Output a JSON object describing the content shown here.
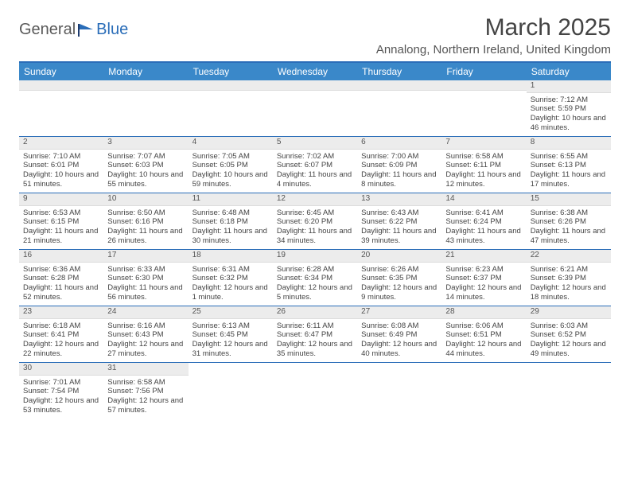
{
  "logo": {
    "word1": "General",
    "word2": "Blue"
  },
  "title": "March 2025",
  "location": "Annalong, Northern Ireland, United Kingdom",
  "colors": {
    "accent": "#2a6db8",
    "header_bg": "#3a88c9",
    "daynum_bg": "#ececec",
    "text": "#444444"
  },
  "day_names": [
    "Sunday",
    "Monday",
    "Tuesday",
    "Wednesday",
    "Thursday",
    "Friday",
    "Saturday"
  ],
  "weeks": [
    [
      null,
      null,
      null,
      null,
      null,
      null,
      {
        "n": "1",
        "sr": "Sunrise: 7:12 AM",
        "ss": "Sunset: 5:59 PM",
        "dl": "Daylight: 10 hours and 46 minutes."
      }
    ],
    [
      {
        "n": "2",
        "sr": "Sunrise: 7:10 AM",
        "ss": "Sunset: 6:01 PM",
        "dl": "Daylight: 10 hours and 51 minutes."
      },
      {
        "n": "3",
        "sr": "Sunrise: 7:07 AM",
        "ss": "Sunset: 6:03 PM",
        "dl": "Daylight: 10 hours and 55 minutes."
      },
      {
        "n": "4",
        "sr": "Sunrise: 7:05 AM",
        "ss": "Sunset: 6:05 PM",
        "dl": "Daylight: 10 hours and 59 minutes."
      },
      {
        "n": "5",
        "sr": "Sunrise: 7:02 AM",
        "ss": "Sunset: 6:07 PM",
        "dl": "Daylight: 11 hours and 4 minutes."
      },
      {
        "n": "6",
        "sr": "Sunrise: 7:00 AM",
        "ss": "Sunset: 6:09 PM",
        "dl": "Daylight: 11 hours and 8 minutes."
      },
      {
        "n": "7",
        "sr": "Sunrise: 6:58 AM",
        "ss": "Sunset: 6:11 PM",
        "dl": "Daylight: 11 hours and 12 minutes."
      },
      {
        "n": "8",
        "sr": "Sunrise: 6:55 AM",
        "ss": "Sunset: 6:13 PM",
        "dl": "Daylight: 11 hours and 17 minutes."
      }
    ],
    [
      {
        "n": "9",
        "sr": "Sunrise: 6:53 AM",
        "ss": "Sunset: 6:15 PM",
        "dl": "Daylight: 11 hours and 21 minutes."
      },
      {
        "n": "10",
        "sr": "Sunrise: 6:50 AM",
        "ss": "Sunset: 6:16 PM",
        "dl": "Daylight: 11 hours and 26 minutes."
      },
      {
        "n": "11",
        "sr": "Sunrise: 6:48 AM",
        "ss": "Sunset: 6:18 PM",
        "dl": "Daylight: 11 hours and 30 minutes."
      },
      {
        "n": "12",
        "sr": "Sunrise: 6:45 AM",
        "ss": "Sunset: 6:20 PM",
        "dl": "Daylight: 11 hours and 34 minutes."
      },
      {
        "n": "13",
        "sr": "Sunrise: 6:43 AM",
        "ss": "Sunset: 6:22 PM",
        "dl": "Daylight: 11 hours and 39 minutes."
      },
      {
        "n": "14",
        "sr": "Sunrise: 6:41 AM",
        "ss": "Sunset: 6:24 PM",
        "dl": "Daylight: 11 hours and 43 minutes."
      },
      {
        "n": "15",
        "sr": "Sunrise: 6:38 AM",
        "ss": "Sunset: 6:26 PM",
        "dl": "Daylight: 11 hours and 47 minutes."
      }
    ],
    [
      {
        "n": "16",
        "sr": "Sunrise: 6:36 AM",
        "ss": "Sunset: 6:28 PM",
        "dl": "Daylight: 11 hours and 52 minutes."
      },
      {
        "n": "17",
        "sr": "Sunrise: 6:33 AM",
        "ss": "Sunset: 6:30 PM",
        "dl": "Daylight: 11 hours and 56 minutes."
      },
      {
        "n": "18",
        "sr": "Sunrise: 6:31 AM",
        "ss": "Sunset: 6:32 PM",
        "dl": "Daylight: 12 hours and 1 minute."
      },
      {
        "n": "19",
        "sr": "Sunrise: 6:28 AM",
        "ss": "Sunset: 6:34 PM",
        "dl": "Daylight: 12 hours and 5 minutes."
      },
      {
        "n": "20",
        "sr": "Sunrise: 6:26 AM",
        "ss": "Sunset: 6:35 PM",
        "dl": "Daylight: 12 hours and 9 minutes."
      },
      {
        "n": "21",
        "sr": "Sunrise: 6:23 AM",
        "ss": "Sunset: 6:37 PM",
        "dl": "Daylight: 12 hours and 14 minutes."
      },
      {
        "n": "22",
        "sr": "Sunrise: 6:21 AM",
        "ss": "Sunset: 6:39 PM",
        "dl": "Daylight: 12 hours and 18 minutes."
      }
    ],
    [
      {
        "n": "23",
        "sr": "Sunrise: 6:18 AM",
        "ss": "Sunset: 6:41 PM",
        "dl": "Daylight: 12 hours and 22 minutes."
      },
      {
        "n": "24",
        "sr": "Sunrise: 6:16 AM",
        "ss": "Sunset: 6:43 PM",
        "dl": "Daylight: 12 hours and 27 minutes."
      },
      {
        "n": "25",
        "sr": "Sunrise: 6:13 AM",
        "ss": "Sunset: 6:45 PM",
        "dl": "Daylight: 12 hours and 31 minutes."
      },
      {
        "n": "26",
        "sr": "Sunrise: 6:11 AM",
        "ss": "Sunset: 6:47 PM",
        "dl": "Daylight: 12 hours and 35 minutes."
      },
      {
        "n": "27",
        "sr": "Sunrise: 6:08 AM",
        "ss": "Sunset: 6:49 PM",
        "dl": "Daylight: 12 hours and 40 minutes."
      },
      {
        "n": "28",
        "sr": "Sunrise: 6:06 AM",
        "ss": "Sunset: 6:51 PM",
        "dl": "Daylight: 12 hours and 44 minutes."
      },
      {
        "n": "29",
        "sr": "Sunrise: 6:03 AM",
        "ss": "Sunset: 6:52 PM",
        "dl": "Daylight: 12 hours and 49 minutes."
      }
    ],
    [
      {
        "n": "30",
        "sr": "Sunrise: 7:01 AM",
        "ss": "Sunset: 7:54 PM",
        "dl": "Daylight: 12 hours and 53 minutes."
      },
      {
        "n": "31",
        "sr": "Sunrise: 6:58 AM",
        "ss": "Sunset: 7:56 PM",
        "dl": "Daylight: 12 hours and 57 minutes."
      },
      null,
      null,
      null,
      null,
      null
    ]
  ]
}
